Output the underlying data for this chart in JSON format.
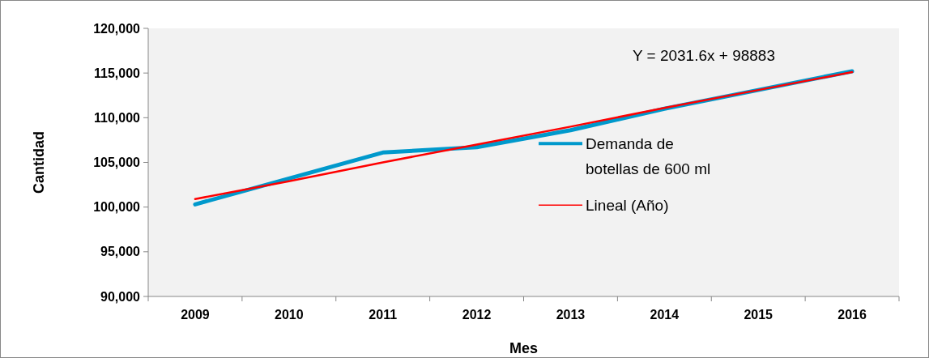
{
  "chart_data": {
    "type": "line",
    "xlabel": "Mes",
    "ylabel": "Cantidad",
    "categories": [
      "2009",
      "2010",
      "2011",
      "2012",
      "2013",
      "2014",
      "2015",
      "2016"
    ],
    "series": [
      {
        "name": "Demanda de botellas de 600 ml",
        "color": "#0099cc",
        "values": [
          100300,
          103200,
          106100,
          106700,
          108600,
          111000,
          113100,
          115200
        ]
      },
      {
        "name": "Lineal (Año)",
        "color": "#ff0000",
        "values": [
          100900,
          102900,
          105000,
          107000,
          109000,
          111100,
          113100,
          115100
        ]
      }
    ],
    "ylim": [
      90000,
      120000
    ],
    "yticks": [
      {
        "value": 90000,
        "label": "90,000"
      },
      {
        "value": 95000,
        "label": "95,000"
      },
      {
        "value": 100000,
        "label": "100,000"
      },
      {
        "value": 105000,
        "label": "105,000"
      },
      {
        "value": 110000,
        "label": "110,000"
      },
      {
        "value": 115000,
        "label": "115,000"
      },
      {
        "value": 120000,
        "label": "120,000"
      }
    ],
    "annotations": [
      "Y = 2031.6x + 98883"
    ],
    "legend": "right",
    "grid": false,
    "line_style": "solid"
  }
}
